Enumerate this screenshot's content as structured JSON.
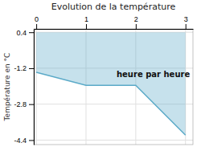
{
  "chart_data": {
    "type": "area",
    "title": "Evolution de la température",
    "ylabel": "Température en °C",
    "annotation": "heure par heure",
    "x": [
      0,
      1,
      2,
      3
    ],
    "values": [
      -1.38,
      -1.96,
      -1.96,
      -4.18
    ],
    "fill_top": 0.4,
    "xlim": [
      -0.05,
      3.15
    ],
    "ylim": [
      -4.6,
      0.55
    ],
    "xticks": [
      0,
      1,
      2,
      3
    ],
    "yticks": [
      0.4,
      -1.2,
      -2.8,
      -4.4
    ],
    "color": "#5baac8",
    "grid": true
  }
}
